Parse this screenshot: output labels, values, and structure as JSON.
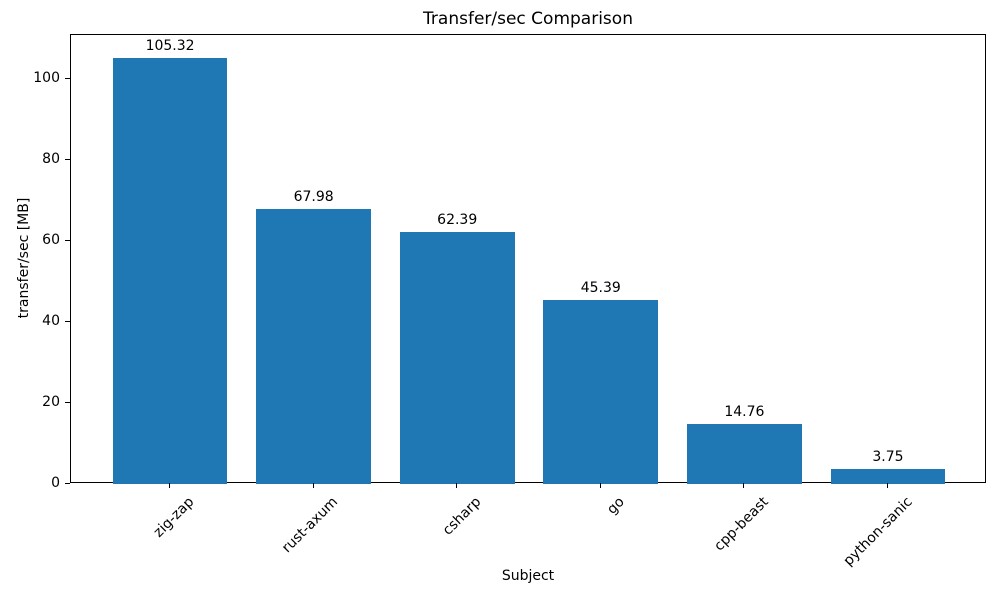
{
  "chart_data": {
    "type": "bar",
    "title": "Transfer/sec Comparison",
    "xlabel": "Subject",
    "ylabel": "transfer/sec [MB]",
    "categories": [
      "zig-zap",
      "rust-axum",
      "csharp",
      "go",
      "cpp-beast",
      "python-sanic"
    ],
    "values": [
      105.32,
      67.98,
      62.39,
      45.39,
      14.76,
      3.75
    ],
    "bar_labels": [
      "105.32",
      "67.98",
      "62.39",
      "45.39",
      "14.76",
      "3.75"
    ],
    "yticks": [
      0,
      20,
      40,
      60,
      80,
      100
    ],
    "ylim": [
      0,
      111
    ],
    "bar_color": "#1f77b4",
    "bar_relative_width": 0.8,
    "grid": false,
    "legend": null,
    "xtick_rotation_deg": 45
  }
}
